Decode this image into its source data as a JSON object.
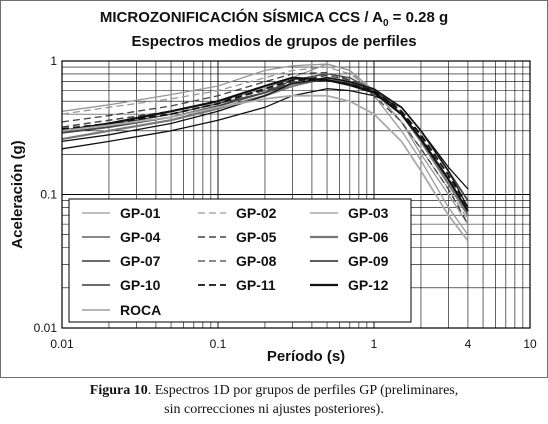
{
  "chart_data": {
    "type": "line",
    "title_line1": "MICROZONIFICACIÓN SÍSMICA CCS /  A",
    "title_sub": "0",
    "title_line1_end": " = 0.28 g",
    "title_line2": "Espectros medios de grupos de perfiles",
    "xlabel": "Período (s)",
    "ylabel": "Aceleración (g)",
    "x_scale": "log",
    "y_scale": "log",
    "xlim": [
      0.01,
      10
    ],
    "ylim": [
      0.01,
      1
    ],
    "x_ticks": [
      "0.01",
      "0.1",
      "1",
      "4",
      "10"
    ],
    "x_tick_values": [
      0.01,
      0.1,
      1,
      4,
      10
    ],
    "y_ticks": [
      "0.01",
      "0.1",
      "1"
    ],
    "y_tick_values": [
      0.01,
      0.1,
      1
    ],
    "grid": true,
    "legend_position": "lower-left",
    "colors": {
      "grid": "#000000",
      "dark": "#111111",
      "mid": "#444444",
      "light": "#999999",
      "rock": "#aaaaaa"
    },
    "series": [
      {
        "name": "GP-01",
        "color": "#999999",
        "dash": "solid",
        "width": 1.3,
        "points": [
          [
            0.01,
            0.42
          ],
          [
            0.02,
            0.47
          ],
          [
            0.05,
            0.56
          ],
          [
            0.1,
            0.65
          ],
          [
            0.2,
            0.85
          ],
          [
            0.3,
            0.92
          ],
          [
            0.5,
            0.95
          ],
          [
            0.7,
            0.85
          ],
          [
            1,
            0.6
          ],
          [
            1.5,
            0.35
          ],
          [
            2,
            0.2
          ],
          [
            3,
            0.1
          ],
          [
            4,
            0.06
          ]
        ]
      },
      {
        "name": "GP-02",
        "color": "#999999",
        "dash": "dash",
        "width": 1.3,
        "points": [
          [
            0.01,
            0.4
          ],
          [
            0.02,
            0.45
          ],
          [
            0.05,
            0.52
          ],
          [
            0.1,
            0.6
          ],
          [
            0.2,
            0.75
          ],
          [
            0.3,
            0.85
          ],
          [
            0.5,
            0.9
          ],
          [
            0.7,
            0.8
          ],
          [
            1,
            0.6
          ],
          [
            1.5,
            0.35
          ],
          [
            2,
            0.22
          ],
          [
            3,
            0.11
          ],
          [
            4,
            0.065
          ]
        ]
      },
      {
        "name": "GP-03",
        "color": "#999999",
        "dash": "solid",
        "width": 1.3,
        "points": [
          [
            0.01,
            0.3
          ],
          [
            0.02,
            0.34
          ],
          [
            0.05,
            0.42
          ],
          [
            0.1,
            0.5
          ],
          [
            0.2,
            0.62
          ],
          [
            0.3,
            0.75
          ],
          [
            0.5,
            0.95
          ],
          [
            0.7,
            0.85
          ],
          [
            1,
            0.55
          ],
          [
            1.5,
            0.3
          ],
          [
            2,
            0.18
          ],
          [
            3,
            0.08
          ],
          [
            4,
            0.05
          ]
        ]
      },
      {
        "name": "GP-04",
        "color": "#444444",
        "dash": "solid",
        "width": 1.3,
        "points": [
          [
            0.01,
            0.3
          ],
          [
            0.02,
            0.33
          ],
          [
            0.05,
            0.4
          ],
          [
            0.1,
            0.48
          ],
          [
            0.2,
            0.58
          ],
          [
            0.3,
            0.72
          ],
          [
            0.5,
            0.8
          ],
          [
            0.7,
            0.75
          ],
          [
            1,
            0.6
          ],
          [
            1.5,
            0.4
          ],
          [
            2,
            0.25
          ],
          [
            3,
            0.12
          ],
          [
            4,
            0.07
          ]
        ]
      },
      {
        "name": "GP-05",
        "color": "#444444",
        "dash": "dash",
        "width": 1.5,
        "points": [
          [
            0.01,
            0.32
          ],
          [
            0.02,
            0.36
          ],
          [
            0.05,
            0.42
          ],
          [
            0.1,
            0.5
          ],
          [
            0.2,
            0.6
          ],
          [
            0.3,
            0.7
          ],
          [
            0.5,
            0.78
          ],
          [
            0.7,
            0.72
          ],
          [
            1,
            0.6
          ],
          [
            1.5,
            0.42
          ],
          [
            2,
            0.27
          ],
          [
            3,
            0.13
          ],
          [
            4,
            0.075
          ]
        ]
      },
      {
        "name": "GP-06",
        "color": "#777777",
        "dash": "solid",
        "width": 2.2,
        "points": [
          [
            0.01,
            0.26
          ],
          [
            0.02,
            0.3
          ],
          [
            0.05,
            0.36
          ],
          [
            0.1,
            0.44
          ],
          [
            0.2,
            0.55
          ],
          [
            0.3,
            0.65
          ],
          [
            0.5,
            0.75
          ],
          [
            0.7,
            0.7
          ],
          [
            1,
            0.58
          ],
          [
            1.5,
            0.4
          ],
          [
            2,
            0.25
          ],
          [
            3,
            0.12
          ],
          [
            4,
            0.07
          ]
        ]
      },
      {
        "name": "GP-07",
        "color": "#111111",
        "dash": "solid",
        "width": 1.3,
        "points": [
          [
            0.01,
            0.22
          ],
          [
            0.02,
            0.25
          ],
          [
            0.05,
            0.3
          ],
          [
            0.1,
            0.36
          ],
          [
            0.2,
            0.45
          ],
          [
            0.3,
            0.55
          ],
          [
            0.5,
            0.62
          ],
          [
            0.7,
            0.6
          ],
          [
            1,
            0.55
          ],
          [
            1.5,
            0.45
          ],
          [
            2,
            0.3
          ],
          [
            3,
            0.16
          ],
          [
            4,
            0.11
          ]
        ]
      },
      {
        "name": "GP-08",
        "color": "#444444",
        "dash": "dash",
        "width": 1.3,
        "points": [
          [
            0.01,
            0.35
          ],
          [
            0.02,
            0.39
          ],
          [
            0.05,
            0.46
          ],
          [
            0.1,
            0.55
          ],
          [
            0.2,
            0.7
          ],
          [
            0.3,
            0.8
          ],
          [
            0.5,
            0.82
          ],
          [
            0.7,
            0.72
          ],
          [
            1,
            0.55
          ],
          [
            1.5,
            0.35
          ],
          [
            2,
            0.22
          ],
          [
            3,
            0.11
          ],
          [
            4,
            0.06
          ]
        ]
      },
      {
        "name": "GP-09",
        "color": "#444444",
        "dash": "solid",
        "width": 1.8,
        "points": [
          [
            0.01,
            0.29
          ],
          [
            0.02,
            0.32
          ],
          [
            0.05,
            0.38
          ],
          [
            0.1,
            0.46
          ],
          [
            0.2,
            0.58
          ],
          [
            0.3,
            0.68
          ],
          [
            0.5,
            0.72
          ],
          [
            0.7,
            0.68
          ],
          [
            1,
            0.6
          ],
          [
            1.5,
            0.45
          ],
          [
            2,
            0.3
          ],
          [
            3,
            0.15
          ],
          [
            4,
            0.09
          ]
        ]
      },
      {
        "name": "GP-10",
        "color": "#111111",
        "dash": "solid",
        "width": 1.3,
        "points": [
          [
            0.01,
            0.25
          ],
          [
            0.02,
            0.28
          ],
          [
            0.05,
            0.34
          ],
          [
            0.1,
            0.42
          ],
          [
            0.2,
            0.55
          ],
          [
            0.3,
            0.68
          ],
          [
            0.5,
            0.75
          ],
          [
            0.7,
            0.7
          ],
          [
            1,
            0.62
          ],
          [
            1.5,
            0.45
          ],
          [
            2,
            0.3
          ],
          [
            3,
            0.15
          ],
          [
            4,
            0.08
          ]
        ]
      },
      {
        "name": "GP-11",
        "color": "#111111",
        "dash": "dash",
        "width": 1.8,
        "points": [
          [
            0.01,
            0.31
          ],
          [
            0.02,
            0.34
          ],
          [
            0.05,
            0.4
          ],
          [
            0.1,
            0.48
          ],
          [
            0.2,
            0.62
          ],
          [
            0.3,
            0.72
          ],
          [
            0.5,
            0.72
          ],
          [
            0.7,
            0.67
          ],
          [
            1,
            0.6
          ],
          [
            1.5,
            0.42
          ],
          [
            2,
            0.28
          ],
          [
            3,
            0.14
          ],
          [
            4,
            0.08
          ]
        ]
      },
      {
        "name": "GP-12",
        "color": "#111111",
        "dash": "solid",
        "width": 2.2,
        "points": [
          [
            0.01,
            0.3
          ],
          [
            0.02,
            0.34
          ],
          [
            0.05,
            0.42
          ],
          [
            0.1,
            0.5
          ],
          [
            0.2,
            0.65
          ],
          [
            0.3,
            0.75
          ],
          [
            0.5,
            0.72
          ],
          [
            0.7,
            0.66
          ],
          [
            1,
            0.58
          ],
          [
            1.5,
            0.4
          ],
          [
            2,
            0.26
          ],
          [
            3,
            0.13
          ],
          [
            4,
            0.075
          ]
        ]
      },
      {
        "name": "ROCA",
        "color": "#aaaaaa",
        "dash": "solid",
        "width": 1.8,
        "points": [
          [
            0.01,
            0.3
          ],
          [
            0.02,
            0.33
          ],
          [
            0.05,
            0.38
          ],
          [
            0.1,
            0.45
          ],
          [
            0.2,
            0.52
          ],
          [
            0.3,
            0.55
          ],
          [
            0.5,
            0.55
          ],
          [
            0.7,
            0.5
          ],
          [
            1,
            0.4
          ],
          [
            1.5,
            0.25
          ],
          [
            2,
            0.15
          ],
          [
            3,
            0.07
          ],
          [
            4,
            0.045
          ]
        ]
      }
    ]
  },
  "caption": {
    "label": "Figura 10",
    "text": ". Espectros 1D por grupos de perfiles GP (preliminares,",
    "line2": "sin correcciones ni ajustes posteriores)."
  }
}
